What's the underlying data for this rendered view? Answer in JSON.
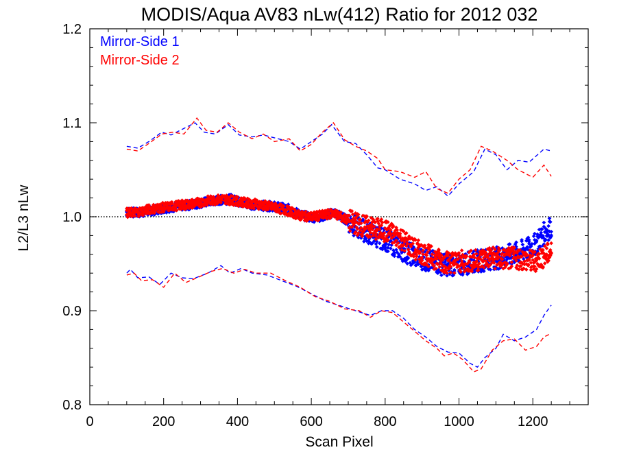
{
  "chart_data": {
    "type": "scatter",
    "title": "MODIS/Aqua AV83 nLw(412) Ratio for 2012 032",
    "xlabel": "Scan Pixel",
    "ylabel": "L2/L3 nLw",
    "xlim": [
      0,
      1350
    ],
    "ylim": [
      0.8,
      1.2
    ],
    "xticks": [
      "0",
      "200",
      "400",
      "600",
      "800",
      "1000",
      "1200"
    ],
    "yticks": [
      "0.8",
      "0.9",
      "1.0",
      "1.1",
      "1.2"
    ],
    "reference_line": 1.0,
    "legend_position": "top-left",
    "series": [
      {
        "name": "Mirror-Side 1",
        "color": "#0000ff",
        "mean": [
          [
            100,
            1.005
          ],
          [
            130,
            1.004
          ],
          [
            160,
            1.006
          ],
          [
            200,
            1.009
          ],
          [
            240,
            1.011
          ],
          [
            280,
            1.013
          ],
          [
            320,
            1.016
          ],
          [
            360,
            1.018
          ],
          [
            380,
            1.019
          ],
          [
            420,
            1.014
          ],
          [
            460,
            1.012
          ],
          [
            500,
            1.011
          ],
          [
            540,
            1.008
          ],
          [
            570,
            1.002
          ],
          [
            600,
            0.999
          ],
          [
            640,
            1.001
          ],
          [
            660,
            1.005
          ],
          [
            690,
            0.998
          ],
          [
            720,
            0.99
          ],
          [
            760,
            0.982
          ],
          [
            800,
            0.976
          ],
          [
            840,
            0.966
          ],
          [
            880,
            0.958
          ],
          [
            920,
            0.953
          ],
          [
            960,
            0.949
          ],
          [
            1000,
            0.949
          ],
          [
            1040,
            0.952
          ],
          [
            1080,
            0.955
          ],
          [
            1120,
            0.957
          ],
          [
            1160,
            0.962
          ],
          [
            1200,
            0.968
          ],
          [
            1230,
            0.982
          ],
          [
            1250,
            0.99
          ]
        ],
        "upper": [
          [
            100,
            1.075
          ],
          [
            115,
            1.074
          ],
          [
            130,
            1.073
          ],
          [
            160,
            1.08
          ],
          [
            195,
            1.09
          ],
          [
            220,
            1.087
          ],
          [
            250,
            1.093
          ],
          [
            285,
            1.1
          ],
          [
            310,
            1.09
          ],
          [
            340,
            1.088
          ],
          [
            375,
            1.098
          ],
          [
            405,
            1.087
          ],
          [
            440,
            1.085
          ],
          [
            470,
            1.087
          ],
          [
            500,
            1.084
          ],
          [
            540,
            1.08
          ],
          [
            570,
            1.072
          ],
          [
            600,
            1.08
          ],
          [
            630,
            1.088
          ],
          [
            655,
            1.098
          ],
          [
            690,
            1.08
          ],
          [
            720,
            1.078
          ],
          [
            750,
            1.066
          ],
          [
            780,
            1.052
          ],
          [
            800,
            1.05
          ],
          [
            840,
            1.04
          ],
          [
            880,
            1.035
          ],
          [
            910,
            1.028
          ],
          [
            940,
            1.032
          ],
          [
            970,
            1.022
          ],
          [
            1000,
            1.035
          ],
          [
            1040,
            1.048
          ],
          [
            1070,
            1.072
          ],
          [
            1100,
            1.066
          ],
          [
            1130,
            1.05
          ],
          [
            1160,
            1.06
          ],
          [
            1190,
            1.058
          ],
          [
            1230,
            1.072
          ],
          [
            1250,
            1.07
          ]
        ],
        "lower": [
          [
            100,
            0.94
          ],
          [
            110,
            0.944
          ],
          [
            130,
            0.935
          ],
          [
            160,
            0.936
          ],
          [
            190,
            0.928
          ],
          [
            220,
            0.94
          ],
          [
            250,
            0.935
          ],
          [
            280,
            0.934
          ],
          [
            320,
            0.94
          ],
          [
            355,
            0.948
          ],
          [
            380,
            0.94
          ],
          [
            410,
            0.945
          ],
          [
            440,
            0.94
          ],
          [
            480,
            0.938
          ],
          [
            520,
            0.932
          ],
          [
            560,
            0.926
          ],
          [
            600,
            0.918
          ],
          [
            640,
            0.91
          ],
          [
            680,
            0.905
          ],
          [
            720,
            0.9
          ],
          [
            760,
            0.895
          ],
          [
            790,
            0.9
          ],
          [
            820,
            0.9
          ],
          [
            850,
            0.892
          ],
          [
            880,
            0.88
          ],
          [
            910,
            0.872
          ],
          [
            940,
            0.862
          ],
          [
            970,
            0.856
          ],
          [
            1000,
            0.855
          ],
          [
            1030,
            0.844
          ],
          [
            1050,
            0.84
          ],
          [
            1070,
            0.85
          ],
          [
            1100,
            0.86
          ],
          [
            1120,
            0.875
          ],
          [
            1150,
            0.868
          ],
          [
            1180,
            0.872
          ],
          [
            1210,
            0.88
          ],
          [
            1230,
            0.895
          ],
          [
            1250,
            0.906
          ]
        ]
      },
      {
        "name": "Mirror-Side 2",
        "color": "#ff0000",
        "mean": [
          [
            100,
            1.004
          ],
          [
            130,
            1.005
          ],
          [
            160,
            1.008
          ],
          [
            200,
            1.01
          ],
          [
            240,
            1.012
          ],
          [
            280,
            1.014
          ],
          [
            320,
            1.017
          ],
          [
            360,
            1.019
          ],
          [
            380,
            1.018
          ],
          [
            420,
            1.015
          ],
          [
            460,
            1.013
          ],
          [
            500,
            1.01
          ],
          [
            540,
            1.006
          ],
          [
            570,
            1.001
          ],
          [
            600,
            1.0
          ],
          [
            640,
            1.002
          ],
          [
            660,
            1.004
          ],
          [
            690,
            0.998
          ],
          [
            720,
            0.993
          ],
          [
            760,
            0.988
          ],
          [
            800,
            0.985
          ],
          [
            840,
            0.978
          ],
          [
            880,
            0.965
          ],
          [
            920,
            0.958
          ],
          [
            960,
            0.952
          ],
          [
            1000,
            0.952
          ],
          [
            1040,
            0.953
          ],
          [
            1080,
            0.957
          ],
          [
            1120,
            0.955
          ],
          [
            1160,
            0.956
          ],
          [
            1200,
            0.952
          ],
          [
            1230,
            0.958
          ],
          [
            1250,
            0.962
          ]
        ],
        "upper": [
          [
            100,
            1.072
          ],
          [
            130,
            1.07
          ],
          [
            160,
            1.078
          ],
          [
            195,
            1.088
          ],
          [
            225,
            1.09
          ],
          [
            255,
            1.088
          ],
          [
            290,
            1.105
          ],
          [
            315,
            1.092
          ],
          [
            345,
            1.09
          ],
          [
            375,
            1.1
          ],
          [
            405,
            1.09
          ],
          [
            440,
            1.083
          ],
          [
            470,
            1.088
          ],
          [
            500,
            1.08
          ],
          [
            540,
            1.083
          ],
          [
            570,
            1.07
          ],
          [
            600,
            1.077
          ],
          [
            630,
            1.09
          ],
          [
            660,
            1.1
          ],
          [
            690,
            1.082
          ],
          [
            720,
            1.075
          ],
          [
            750,
            1.07
          ],
          [
            780,
            1.062
          ],
          [
            800,
            1.05
          ],
          [
            840,
            1.048
          ],
          [
            880,
            1.042
          ],
          [
            910,
            1.048
          ],
          [
            940,
            1.03
          ],
          [
            970,
            1.025
          ],
          [
            1000,
            1.04
          ],
          [
            1030,
            1.05
          ],
          [
            1060,
            1.075
          ],
          [
            1090,
            1.07
          ],
          [
            1130,
            1.06
          ],
          [
            1160,
            1.05
          ],
          [
            1200,
            1.042
          ],
          [
            1230,
            1.055
          ],
          [
            1250,
            1.043
          ]
        ],
        "lower": [
          [
            100,
            0.938
          ],
          [
            120,
            0.94
          ],
          [
            140,
            0.932
          ],
          [
            170,
            0.933
          ],
          [
            200,
            0.925
          ],
          [
            230,
            0.94
          ],
          [
            260,
            0.93
          ],
          [
            290,
            0.935
          ],
          [
            330,
            0.942
          ],
          [
            360,
            0.945
          ],
          [
            390,
            0.94
          ],
          [
            420,
            0.944
          ],
          [
            450,
            0.94
          ],
          [
            490,
            0.94
          ],
          [
            530,
            0.932
          ],
          [
            570,
            0.925
          ],
          [
            610,
            0.915
          ],
          [
            650,
            0.91
          ],
          [
            690,
            0.902
          ],
          [
            730,
            0.9
          ],
          [
            760,
            0.893
          ],
          [
            790,
            0.9
          ],
          [
            820,
            0.898
          ],
          [
            850,
            0.888
          ],
          [
            880,
            0.878
          ],
          [
            910,
            0.868
          ],
          [
            940,
            0.86
          ],
          [
            960,
            0.852
          ],
          [
            985,
            0.855
          ],
          [
            1010,
            0.848
          ],
          [
            1040,
            0.835
          ],
          [
            1060,
            0.838
          ],
          [
            1090,
            0.858
          ],
          [
            1120,
            0.868
          ],
          [
            1150,
            0.87
          ],
          [
            1180,
            0.858
          ],
          [
            1210,
            0.862
          ],
          [
            1230,
            0.872
          ],
          [
            1250,
            0.876
          ]
        ]
      }
    ]
  }
}
